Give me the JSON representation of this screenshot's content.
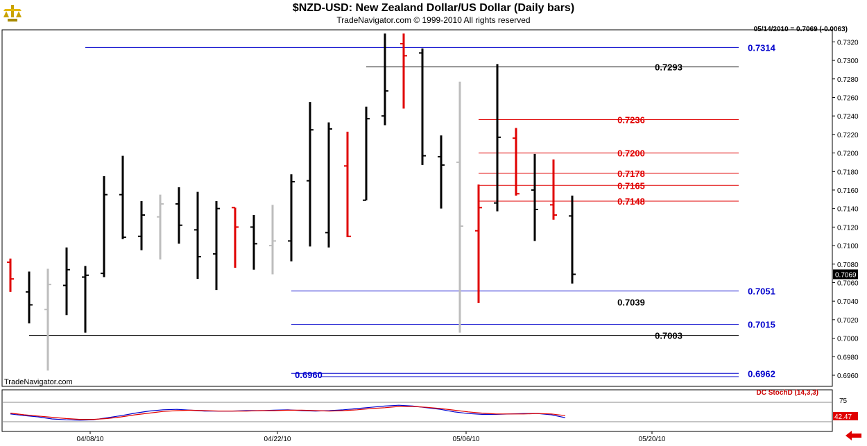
{
  "title": "$NZD-USD:  New Zealand Dollar/US Dollar  (Daily bars)",
  "subtitle": "TradeNavigator.com © 1999-2010 All rights reserved",
  "quote": "05/14/2010 = 0.7069 (-0.0063)",
  "watermark": "TradeNavigator.com",
  "indicator_label": "DC StochD (14,3,3)",
  "colors": {
    "up": "#000000",
    "down": "#e00000",
    "neutral": "#bdbdbd",
    "support": "#0000cc",
    "fib": "#e00000",
    "stoch_k": "#0000cc",
    "stoch_d": "#e00000"
  },
  "chart_data": [
    {
      "type": "ohlc",
      "title": "$NZD-USD:  New Zealand Dollar/US Dollar  (Daily bars)",
      "x_tick_labels": [
        "04/08/10",
        "04/22/10",
        "05/06/10",
        "05/20/10"
      ],
      "y_ticks": [
        "0.7320",
        "0.7300",
        "0.7280",
        "0.7260",
        "0.7240",
        "0.7220",
        "0.7200",
        "0.7180",
        "0.7160",
        "0.7140",
        "0.7120",
        "0.7100",
        "0.7080",
        "0.7060",
        "0.7040",
        "0.7020",
        "0.7000",
        "0.6980",
        "0.6960"
      ],
      "ylim": [
        0.6948,
        0.7333
      ],
      "last_price": "0.7069",
      "bars": [
        {
          "o": 0.7082,
          "h": 0.7086,
          "l": 0.705,
          "c": 0.7064,
          "color": "down"
        },
        {
          "o": 0.705,
          "h": 0.7072,
          "l": 0.7016,
          "c": 0.7036,
          "color": "up"
        },
        {
          "o": 0.7031,
          "h": 0.7075,
          "l": 0.6965,
          "c": 0.7058,
          "color": "neutral"
        },
        {
          "o": 0.7057,
          "h": 0.7098,
          "l": 0.7025,
          "c": 0.7074,
          "color": "up"
        },
        {
          "o": 0.7066,
          "h": 0.7078,
          "l": 0.7006,
          "c": 0.7068,
          "color": "up"
        },
        {
          "o": 0.707,
          "h": 0.7175,
          "l": 0.7066,
          "c": 0.7155,
          "color": "up"
        },
        {
          "o": 0.7155,
          "h": 0.7197,
          "l": 0.7107,
          "c": 0.7109,
          "color": "up"
        },
        {
          "o": 0.711,
          "h": 0.7148,
          "l": 0.7095,
          "c": 0.7133,
          "color": "up"
        },
        {
          "o": 0.7131,
          "h": 0.7155,
          "l": 0.7085,
          "c": 0.7145,
          "color": "neutral"
        },
        {
          "o": 0.7145,
          "h": 0.7163,
          "l": 0.7102,
          "c": 0.7122,
          "color": "up"
        },
        {
          "o": 0.7117,
          "h": 0.7158,
          "l": 0.7064,
          "c": 0.7088,
          "color": "up"
        },
        {
          "o": 0.7091,
          "h": 0.7148,
          "l": 0.7052,
          "c": 0.714,
          "color": "up"
        },
        {
          "o": 0.7141,
          "h": 0.7141,
          "l": 0.7076,
          "c": 0.712,
          "color": "down"
        },
        {
          "o": 0.712,
          "h": 0.7133,
          "l": 0.7074,
          "c": 0.7102,
          "color": "up"
        },
        {
          "o": 0.71,
          "h": 0.7144,
          "l": 0.7069,
          "c": 0.7105,
          "color": "neutral"
        },
        {
          "o": 0.7105,
          "h": 0.7177,
          "l": 0.7083,
          "c": 0.7169,
          "color": "up"
        },
        {
          "o": 0.717,
          "h": 0.7255,
          "l": 0.7099,
          "c": 0.7225,
          "color": "up"
        },
        {
          "o": 0.7114,
          "h": 0.7233,
          "l": 0.7098,
          "c": 0.7226,
          "color": "up"
        },
        {
          "o": 0.7186,
          "h": 0.7223,
          "l": 0.7109,
          "c": 0.711,
          "color": "down"
        },
        {
          "o": 0.7149,
          "h": 0.725,
          "l": 0.7149,
          "c": 0.7237,
          "color": "up"
        },
        {
          "o": 0.724,
          "h": 0.7329,
          "l": 0.723,
          "c": 0.7267,
          "color": "up"
        },
        {
          "o": 0.7318,
          "h": 0.7329,
          "l": 0.7248,
          "c": 0.7305,
          "color": "down"
        },
        {
          "o": 0.7308,
          "h": 0.7313,
          "l": 0.7187,
          "c": 0.7197,
          "color": "up"
        },
        {
          "o": 0.7196,
          "h": 0.7219,
          "l": 0.714,
          "c": 0.7187,
          "color": "up"
        },
        {
          "o": 0.719,
          "h": 0.7277,
          "l": 0.7006,
          "c": 0.7121,
          "color": "neutral"
        },
        {
          "o": 0.7116,
          "h": 0.7166,
          "l": 0.7038,
          "c": 0.7141,
          "color": "down"
        },
        {
          "o": 0.7146,
          "h": 0.7296,
          "l": 0.7137,
          "c": 0.7217,
          "color": "up"
        },
        {
          "o": 0.7216,
          "h": 0.7227,
          "l": 0.7154,
          "c": 0.7156,
          "color": "down"
        },
        {
          "o": 0.716,
          "h": 0.7199,
          "l": 0.7105,
          "c": 0.7139,
          "color": "up"
        },
        {
          "o": 0.7144,
          "h": 0.7193,
          "l": 0.7128,
          "c": 0.7133,
          "color": "down"
        },
        {
          "o": 0.7132,
          "h": 0.7154,
          "l": 0.7059,
          "c": 0.7069,
          "color": "up"
        }
      ],
      "levels": [
        {
          "value": "0.7314",
          "price": 0.7314,
          "color": "support",
          "x_start_bar": 4
        },
        {
          "value": "0.7293",
          "price": 0.7293,
          "color": "up",
          "x_start_bar": 19
        },
        {
          "value": "0.7236",
          "price": 0.7236,
          "color": "fib",
          "x_start_bar": 25
        },
        {
          "value": "0.7200",
          "price": 0.72,
          "color": "fib",
          "x_start_bar": 25
        },
        {
          "value": "0.7178",
          "price": 0.7178,
          "color": "fib",
          "x_start_bar": 25
        },
        {
          "value": "0.7165",
          "price": 0.7165,
          "color": "fib",
          "x_start_bar": 25
        },
        {
          "value": "0.7148",
          "price": 0.7148,
          "color": "fib",
          "x_start_bar": 25
        },
        {
          "value": "0.7051",
          "price": 0.7051,
          "color": "support",
          "x_start_bar": 15
        },
        {
          "value": "0.7015",
          "price": 0.7015,
          "color": "support",
          "x_start_bar": 15
        },
        {
          "value": "0.7003",
          "price": 0.7003,
          "color": "up",
          "x_start_bar": 1
        },
        {
          "value": "0.6962",
          "price": 0.6962,
          "color": "support",
          "x_start_bar": 15
        },
        {
          "value": "0.6960",
          "price": 0.696,
          "color": "support",
          "x_start_bar": 15
        }
      ],
      "extra_labels": [
        {
          "value": "0.7039",
          "price": 0.7039,
          "color": "up"
        }
      ]
    },
    {
      "type": "line",
      "title": "DC StochD (14,3,3)",
      "ylim": [
        0,
        100
      ],
      "y_ticks": [
        "75"
      ],
      "last_value": "42.47",
      "series": [
        {
          "color": "stoch_k",
          "values": [
            42,
            38,
            35,
            30,
            28,
            27,
            28,
            33,
            38,
            44,
            49,
            52,
            53,
            51,
            49,
            49,
            49,
            50,
            50,
            51,
            52,
            50,
            49,
            50,
            52,
            55,
            58,
            61,
            63,
            61,
            57,
            53,
            47,
            43,
            41,
            41,
            42,
            43,
            43,
            40,
            33
          ]
        },
        {
          "color": "stoch_d",
          "values": [
            44,
            40,
            37,
            34,
            31,
            29,
            29,
            31,
            35,
            40,
            44,
            48,
            50,
            51,
            50,
            49,
            49,
            49,
            50,
            50,
            51,
            51,
            50,
            49,
            50,
            52,
            55,
            57,
            60,
            60,
            58,
            55,
            51,
            47,
            44,
            42,
            42,
            42,
            43,
            42,
            38
          ]
        }
      ]
    }
  ]
}
